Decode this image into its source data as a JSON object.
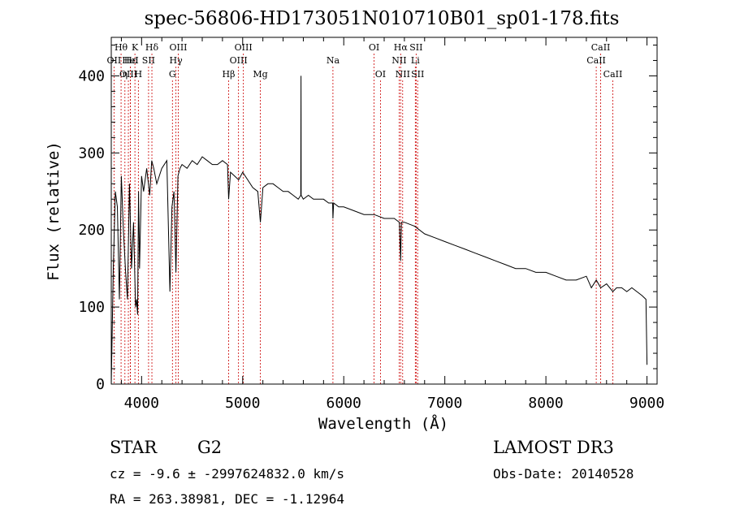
{
  "chart_data": {
    "type": "line",
    "title": "spec-56806-HD173051N010710B01_sp01-178.fits",
    "xlabel": "Wavelength (Å)",
    "ylabel": "Flux (relative)",
    "xlim": [
      3700,
      9100
    ],
    "ylim": [
      0,
      450
    ],
    "xticks": [
      4000,
      5000,
      6000,
      7000,
      8000,
      9000
    ],
    "yticks": [
      0,
      100,
      200,
      300,
      400
    ],
    "series": [
      {
        "name": "flux",
        "x": [
          3700,
          3720,
          3740,
          3760,
          3780,
          3800,
          3820,
          3840,
          3860,
          3880,
          3900,
          3920,
          3940,
          3950,
          3960,
          3970,
          3980,
          4000,
          4020,
          4050,
          4080,
          4100,
          4120,
          4150,
          4200,
          4250,
          4280,
          4300,
          4320,
          4340,
          4360,
          4380,
          4400,
          4450,
          4500,
          4550,
          4600,
          4650,
          4700,
          4750,
          4800,
          4850,
          4861,
          4880,
          4920,
          4960,
          5000,
          5050,
          5100,
          5150,
          5175,
          5200,
          5250,
          5300,
          5350,
          5400,
          5450,
          5500,
          5550,
          5575,
          5577,
          5579,
          5600,
          5650,
          5700,
          5750,
          5800,
          5850,
          5890,
          5893,
          5900,
          5950,
          6000,
          6100,
          6200,
          6300,
          6400,
          6500,
          6550,
          6563,
          6570,
          6600,
          6700,
          6800,
          6900,
          7000,
          7100,
          7200,
          7300,
          7400,
          7500,
          7600,
          7700,
          7800,
          7900,
          8000,
          8100,
          8200,
          8300,
          8400,
          8450,
          8498,
          8542,
          8600,
          8662,
          8700,
          8750,
          8800,
          8850,
          8900,
          8950,
          8990,
          9000
        ],
        "y": [
          0,
          150,
          250,
          230,
          110,
          270,
          200,
          150,
          110,
          260,
          150,
          210,
          100,
          110,
          90,
          250,
          150,
          270,
          250,
          280,
          245,
          290,
          280,
          260,
          280,
          290,
          120,
          230,
          250,
          145,
          270,
          280,
          285,
          280,
          290,
          285,
          295,
          290,
          285,
          285,
          290,
          285,
          240,
          275,
          270,
          265,
          275,
          265,
          255,
          250,
          210,
          255,
          260,
          260,
          255,
          250,
          250,
          245,
          240,
          245,
          400,
          245,
          240,
          245,
          240,
          240,
          240,
          235,
          235,
          215,
          235,
          230,
          230,
          225,
          220,
          220,
          215,
          215,
          210,
          160,
          210,
          210,
          205,
          195,
          190,
          185,
          180,
          175,
          170,
          165,
          160,
          155,
          150,
          150,
          145,
          145,
          140,
          135,
          135,
          140,
          125,
          135,
          125,
          130,
          120,
          125,
          125,
          120,
          125,
          120,
          115,
          110,
          25
        ]
      }
    ],
    "lines": [
      {
        "name": "Hθ",
        "wave": 3797,
        "row": 1
      },
      {
        "name": "OII",
        "wave": 3727,
        "row": 2
      },
      {
        "name": "OIII",
        "wave": 3869,
        "row": 3
      },
      {
        "name": "Hε",
        "wave": 3889,
        "row": 2
      },
      {
        "name": "HeI",
        "wave": 3889,
        "row": 2
      },
      {
        "name": "K",
        "wave": 3934,
        "row": 1
      },
      {
        "name": "η",
        "wave": 3835,
        "row": 3
      },
      {
        "name": "H",
        "wave": 3968,
        "row": 3
      },
      {
        "name": "SII",
        "wave": 4069,
        "row": 2
      },
      {
        "name": "Hδ",
        "wave": 4102,
        "row": 1
      },
      {
        "name": "OIII",
        "wave": 4363,
        "row": 1
      },
      {
        "name": "Hγ",
        "wave": 4340,
        "row": 2
      },
      {
        "name": "G",
        "wave": 4305,
        "row": 3
      },
      {
        "name": "Hβ",
        "wave": 4861,
        "row": 3
      },
      {
        "name": "OIII",
        "wave": 5007,
        "row": 1
      },
      {
        "name": "OIII",
        "wave": 4959,
        "row": 2
      },
      {
        "name": "Mg",
        "wave": 5175,
        "row": 3
      },
      {
        "name": "Na",
        "wave": 5893,
        "row": 2
      },
      {
        "name": "OI",
        "wave": 6300,
        "row": 1
      },
      {
        "name": "OI",
        "wave": 6363,
        "row": 3
      },
      {
        "name": "Hα",
        "wave": 6563,
        "row": 1
      },
      {
        "name": "NII",
        "wave": 6548,
        "row": 2
      },
      {
        "name": "NII",
        "wave": 6583,
        "row": 3
      },
      {
        "name": "SII",
        "wave": 6716,
        "row": 1
      },
      {
        "name": "Li",
        "wave": 6708,
        "row": 2
      },
      {
        "name": "SII",
        "wave": 6731,
        "row": 3
      },
      {
        "name": "CaII",
        "wave": 8542,
        "row": 1
      },
      {
        "name": "CaII",
        "wave": 8498,
        "row": 2
      },
      {
        "name": "CaII",
        "wave": 8662,
        "row": 3
      }
    ]
  },
  "info": {
    "object_type": "STAR",
    "subclass": "G2",
    "survey": "LAMOST DR3",
    "cz": "cz = -9.6 ± -2997624832.0 km/s",
    "obs_date": "Obs-Date: 20140528",
    "coords": "RA = 263.38981, DEC =  -1.12964"
  },
  "colors": {
    "line_marker": "#cc0000",
    "spectrum": "#000000"
  }
}
